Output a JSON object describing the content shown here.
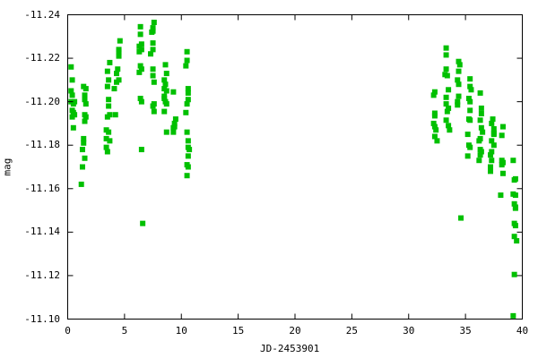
{
  "chart_data": {
    "type": "scatter",
    "title": "",
    "xlabel": "JD-2453901",
    "ylabel": "mag",
    "xlim": [
      0,
      40
    ],
    "ylim": [
      -11.24,
      -11.1
    ],
    "y_inverted": true,
    "grid": false,
    "legend": "none",
    "marker": "square",
    "color": "#00c000",
    "x_ticks": [
      "0",
      "5",
      "10",
      "15",
      "20",
      "25",
      "30",
      "35",
      "40"
    ],
    "x_tick_values": [
      0,
      5,
      10,
      15,
      20,
      25,
      30,
      35,
      40
    ],
    "y_ticks": [
      "-11.24",
      "-11.22",
      "-11.20",
      "-11.18",
      "-11.16",
      "-11.14",
      "-11.12",
      "-11.10"
    ],
    "y_tick_values": [
      -11.24,
      -11.22,
      -11.2,
      -11.18,
      -11.16,
      -11.14,
      -11.12,
      -11.1
    ],
    "points": [
      [
        0.3,
        -11.216
      ],
      [
        0.4,
        -11.21
      ],
      [
        0.3,
        -11.205
      ],
      [
        0.4,
        -11.203
      ],
      [
        0.3,
        -11.2
      ],
      [
        0.5,
        -11.199
      ],
      [
        0.4,
        -11.196
      ],
      [
        0.5,
        -11.195
      ],
      [
        0.4,
        -11.193
      ],
      [
        0.5,
        -11.188
      ],
      [
        0.6,
        -11.2
      ],
      [
        0.6,
        -11.194
      ],
      [
        1.4,
        -11.207
      ],
      [
        1.6,
        -11.206
      ],
      [
        1.5,
        -11.203
      ],
      [
        1.5,
        -11.201
      ],
      [
        1.6,
        -11.199
      ],
      [
        1.5,
        -11.194
      ],
      [
        1.6,
        -11.193
      ],
      [
        1.5,
        -11.191
      ],
      [
        1.4,
        -11.183
      ],
      [
        1.4,
        -11.181
      ],
      [
        1.3,
        -11.178
      ],
      [
        1.5,
        -11.174
      ],
      [
        1.3,
        -11.17
      ],
      [
        1.2,
        -11.162
      ],
      [
        3.7,
        -11.218
      ],
      [
        3.5,
        -11.214
      ],
      [
        3.6,
        -11.21
      ],
      [
        3.5,
        -11.207
      ],
      [
        3.6,
        -11.201
      ],
      [
        3.6,
        -11.198
      ],
      [
        3.7,
        -11.194
      ],
      [
        3.5,
        -11.193
      ],
      [
        3.4,
        -11.187
      ],
      [
        3.6,
        -11.186
      ],
      [
        3.4,
        -11.183
      ],
      [
        3.7,
        -11.182
      ],
      [
        3.4,
        -11.179
      ],
      [
        3.5,
        -11.177
      ],
      [
        4.6,
        -11.228
      ],
      [
        4.5,
        -11.224
      ],
      [
        4.5,
        -11.223
      ],
      [
        4.5,
        -11.221
      ],
      [
        4.4,
        -11.215
      ],
      [
        4.3,
        -11.213
      ],
      [
        4.5,
        -11.21
      ],
      [
        4.3,
        -11.209
      ],
      [
        4.1,
        -11.206
      ],
      [
        4.2,
        -11.194
      ],
      [
        6.4,
        -11.2345
      ],
      [
        6.4,
        -11.231
      ],
      [
        6.5,
        -11.2265
      ],
      [
        6.3,
        -11.2255
      ],
      [
        6.5,
        -11.224
      ],
      [
        6.3,
        -11.223
      ],
      [
        6.4,
        -11.2165
      ],
      [
        6.5,
        -11.215
      ],
      [
        6.3,
        -11.2135
      ],
      [
        6.4,
        -11.2015
      ],
      [
        6.5,
        -11.2
      ],
      [
        6.5,
        -11.178
      ],
      [
        6.6,
        -11.144
      ],
      [
        7.6,
        -11.2365
      ],
      [
        7.5,
        -11.234
      ],
      [
        7.5,
        -11.2325
      ],
      [
        7.4,
        -11.232
      ],
      [
        7.5,
        -11.227
      ],
      [
        7.5,
        -11.224
      ],
      [
        7.3,
        -11.222
      ],
      [
        7.5,
        -11.215
      ],
      [
        7.5,
        -11.212
      ],
      [
        7.6,
        -11.209
      ],
      [
        7.6,
        -11.199
      ],
      [
        7.5,
        -11.198
      ],
      [
        7.6,
        -11.1955
      ],
      [
        8.6,
        -11.217
      ],
      [
        8.7,
        -11.213
      ],
      [
        8.5,
        -11.21
      ],
      [
        8.6,
        -11.208
      ],
      [
        8.5,
        -11.206
      ],
      [
        8.7,
        -11.205
      ],
      [
        8.5,
        -11.2025
      ],
      [
        8.5,
        -11.2015
      ],
      [
        8.6,
        -11.2
      ],
      [
        8.7,
        -11.199
      ],
      [
        8.5,
        -11.1955
      ],
      [
        8.7,
        -11.186
      ],
      [
        9.3,
        -11.2045
      ],
      [
        9.5,
        -11.192
      ],
      [
        9.4,
        -11.19
      ],
      [
        9.4,
        -11.1885
      ],
      [
        9.3,
        -11.188
      ],
      [
        9.3,
        -11.186
      ],
      [
        10.5,
        -11.223
      ],
      [
        10.5,
        -11.219
      ],
      [
        10.4,
        -11.2165
      ],
      [
        10.6,
        -11.206
      ],
      [
        10.6,
        -11.204
      ],
      [
        10.6,
        -11.201
      ],
      [
        10.5,
        -11.199
      ],
      [
        10.4,
        -11.195
      ],
      [
        10.5,
        -11.186
      ],
      [
        10.6,
        -11.182
      ],
      [
        10.6,
        -11.179
      ],
      [
        10.7,
        -11.178
      ],
      [
        10.6,
        -11.175
      ],
      [
        10.5,
        -11.171
      ],
      [
        10.6,
        -11.17
      ],
      [
        10.5,
        -11.166
      ],
      [
        32.3,
        -11.2045
      ],
      [
        32.2,
        -11.203
      ],
      [
        32.3,
        -11.1947
      ],
      [
        32.3,
        -11.1935
      ],
      [
        32.2,
        -11.19
      ],
      [
        32.3,
        -11.1885
      ],
      [
        32.4,
        -11.187
      ],
      [
        32.3,
        -11.184
      ],
      [
        32.5,
        -11.182
      ],
      [
        33.3,
        -11.2247
      ],
      [
        33.3,
        -11.2215
      ],
      [
        33.3,
        -11.215
      ],
      [
        33.2,
        -11.2125
      ],
      [
        33.4,
        -11.212
      ],
      [
        33.5,
        -11.2055
      ],
      [
        33.3,
        -11.202
      ],
      [
        33.3,
        -11.199
      ],
      [
        33.5,
        -11.197
      ],
      [
        33.4,
        -11.1955
      ],
      [
        33.3,
        -11.1915
      ],
      [
        33.5,
        -11.189
      ],
      [
        33.6,
        -11.187
      ],
      [
        34.4,
        -11.2185
      ],
      [
        34.5,
        -11.217
      ],
      [
        34.4,
        -11.214
      ],
      [
        34.3,
        -11.21
      ],
      [
        34.4,
        -11.208
      ],
      [
        34.4,
        -11.2025
      ],
      [
        34.3,
        -11.2
      ],
      [
        34.3,
        -11.1985
      ],
      [
        34.6,
        -11.1465
      ],
      [
        35.4,
        -11.2105
      ],
      [
        35.4,
        -11.207
      ],
      [
        35.5,
        -11.2055
      ],
      [
        35.3,
        -11.2015
      ],
      [
        35.4,
        -11.2
      ],
      [
        35.4,
        -11.196
      ],
      [
        35.3,
        -11.192
      ],
      [
        35.4,
        -11.1915
      ],
      [
        35.2,
        -11.185
      ],
      [
        35.3,
        -11.18
      ],
      [
        35.4,
        -11.179
      ],
      [
        35.2,
        -11.175
      ],
      [
        36.3,
        -11.204
      ],
      [
        36.4,
        -11.197
      ],
      [
        36.4,
        -11.1945
      ],
      [
        36.3,
        -11.1915
      ],
      [
        36.4,
        -11.188
      ],
      [
        36.5,
        -11.186
      ],
      [
        36.3,
        -11.183
      ],
      [
        36.2,
        -11.182
      ],
      [
        36.3,
        -11.178
      ],
      [
        36.4,
        -11.177
      ],
      [
        36.3,
        -11.1755
      ],
      [
        36.2,
        -11.173
      ],
      [
        37.4,
        -11.192
      ],
      [
        37.3,
        -11.19
      ],
      [
        37.5,
        -11.1875
      ],
      [
        37.5,
        -11.1855
      ],
      [
        37.5,
        -11.185
      ],
      [
        37.3,
        -11.182
      ],
      [
        37.5,
        -11.18
      ],
      [
        37.3,
        -11.177
      ],
      [
        37.2,
        -11.1755
      ],
      [
        37.3,
        -11.173
      ],
      [
        37.2,
        -11.17
      ],
      [
        37.2,
        -11.168
      ],
      [
        38.3,
        -11.1885
      ],
      [
        38.2,
        -11.1845
      ],
      [
        38.2,
        -11.173
      ],
      [
        38.3,
        -11.172
      ],
      [
        38.2,
        -11.171
      ],
      [
        38.3,
        -11.167
      ],
      [
        38.1,
        -11.157
      ],
      [
        39.2,
        -11.173
      ],
      [
        39.3,
        -11.164
      ],
      [
        39.4,
        -11.1645
      ],
      [
        39.2,
        -11.1575
      ],
      [
        39.4,
        -11.157
      ],
      [
        39.3,
        -11.153
      ],
      [
        39.4,
        -11.1515
      ],
      [
        39.4,
        -11.151
      ],
      [
        39.3,
        -11.144
      ],
      [
        39.4,
        -11.143
      ],
      [
        39.3,
        -11.138
      ],
      [
        39.5,
        -11.136
      ],
      [
        39.3,
        -11.1205
      ],
      [
        39.2,
        -11.1015
      ]
    ]
  }
}
